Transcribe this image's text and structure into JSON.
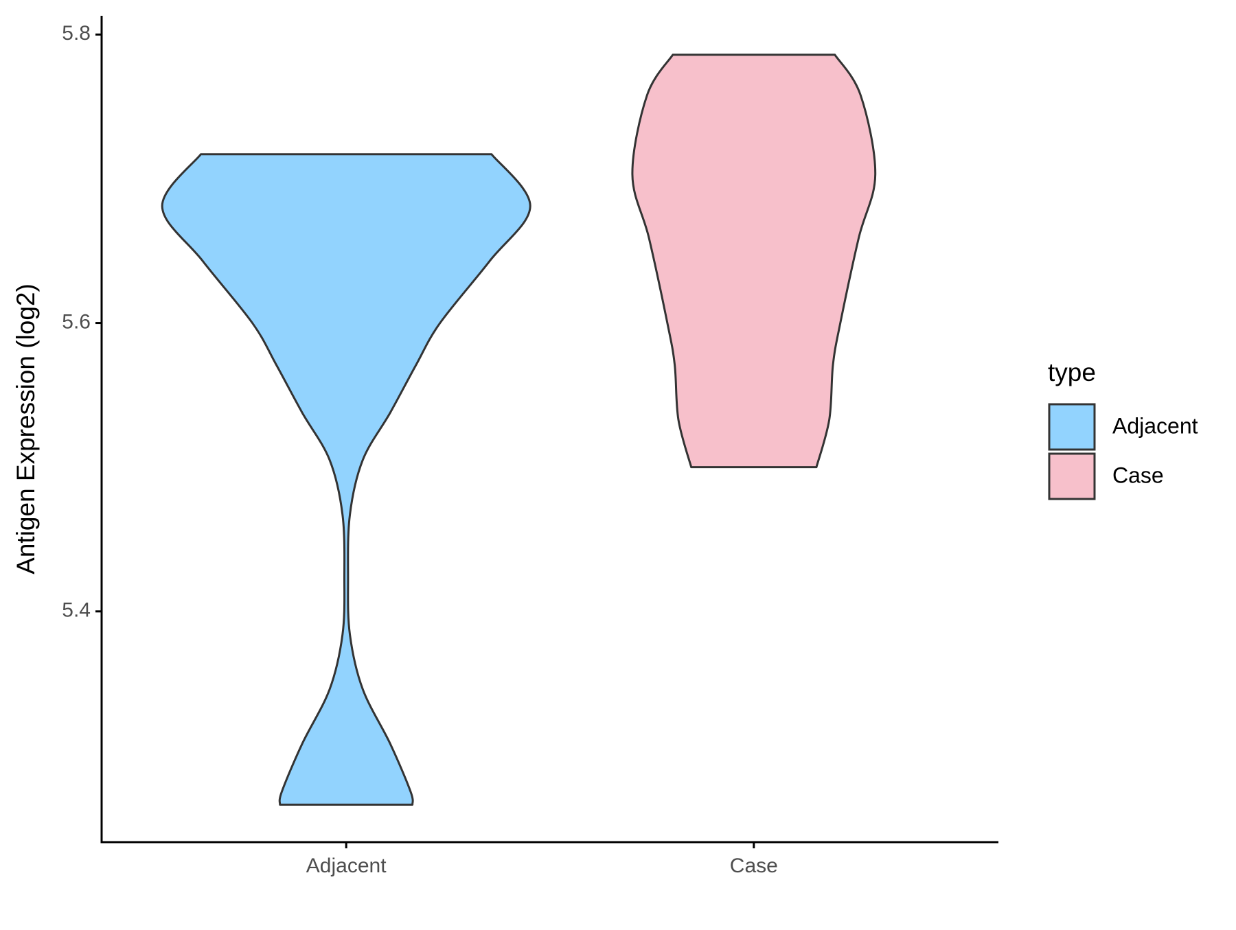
{
  "chart_data": {
    "type": "violin",
    "y_label": "Antigen Expression (log2)",
    "legend_title": "type",
    "legend_position": "right",
    "ylim": [
      5.24,
      5.813
    ],
    "yticks": [
      5.4,
      5.6,
      5.8
    ],
    "categories": [
      "Adjacent",
      "Case"
    ],
    "series": [
      {
        "name": "Adjacent",
        "color": "#92d3fe",
        "y": [
          5.717,
          5.681,
          5.643,
          5.6,
          5.571,
          5.538,
          5.505,
          5.467,
          5.423,
          5.384,
          5.346,
          5.308,
          5.275,
          5.266
        ],
        "density": [
          0.79,
          1.0,
          0.78,
          0.51,
          0.38,
          0.24,
          0.09,
          0.02,
          0.01,
          0.02,
          0.09,
          0.24,
          0.35,
          0.36
        ]
      },
      {
        "name": "Case",
        "color": "#f7c0cb",
        "y": [
          5.786,
          5.758,
          5.703,
          5.659,
          5.6,
          5.571,
          5.533,
          5.5
        ],
        "density": [
          0.44,
          0.58,
          0.66,
          0.57,
          0.47,
          0.43,
          0.41,
          0.34
        ]
      }
    ]
  }
}
